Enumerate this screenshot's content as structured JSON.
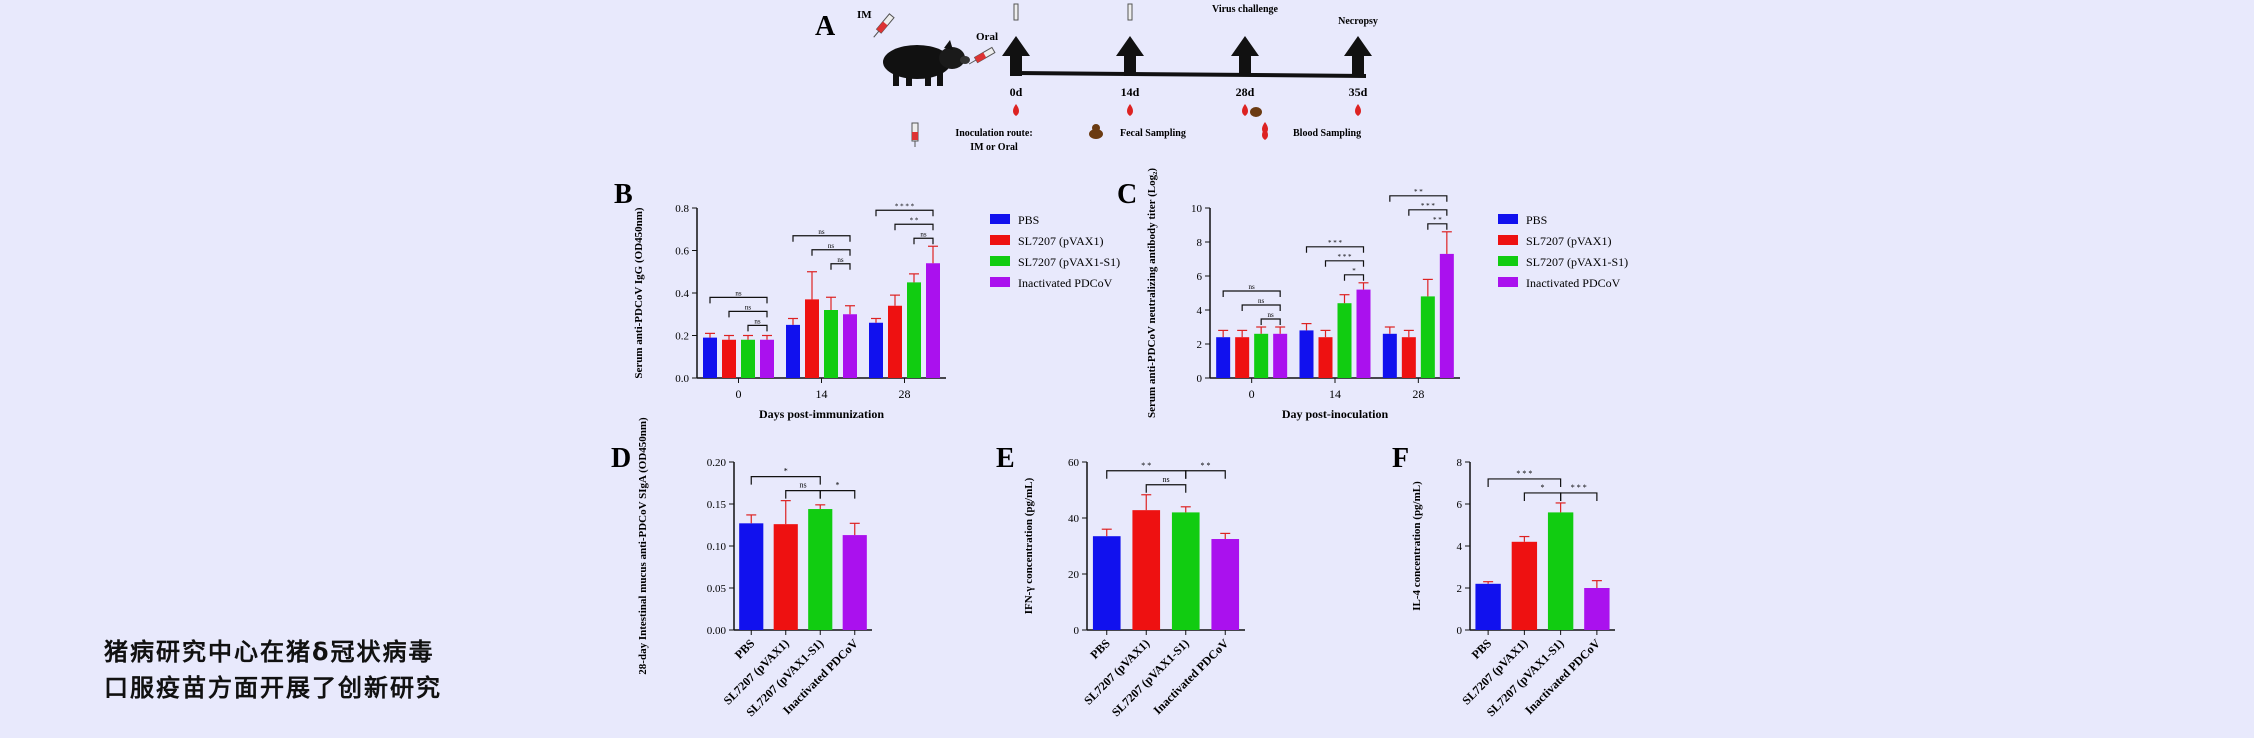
{
  "colors": {
    "blue": "#1111ee",
    "red": "#ee1111",
    "green": "#11cc11",
    "purple": "#aa11ee",
    "error": "#dd2222",
    "axis": "#111111"
  },
  "caption": {
    "line1": "猪病研究中心在猪δ冠状病毒",
    "line2": "口服疫苗方面开展了创新研究"
  },
  "schematic": {
    "panel_label": "A",
    "im_label": "IM",
    "oral_label": "Oral",
    "time_labels": [
      "0d",
      "14d",
      "28d",
      "35d"
    ],
    "top_labels": [
      "Virus challenge",
      "Necropsy"
    ],
    "legend": {
      "inoculation_route": "Inoculation route:",
      "route_detail": "IM or Oral",
      "fecal": "Fecal Sampling",
      "blood": "Blood Sampling"
    }
  },
  "legend_items": [
    "PBS",
    "SL7207 (pVAX1)",
    "SL7207 (pVAX1-S1)",
    "Inactivated PDCoV"
  ],
  "chart_data": [
    {
      "panel": "B",
      "type": "bar",
      "categories": [
        "0",
        "14",
        "28"
      ],
      "xlabel": "Days post-immunization",
      "ylabel": "Serum anti-PDCoV IgG (OD450nm)",
      "ylim": [
        0,
        0.8
      ],
      "yticks": [
        "0.0",
        "0.2",
        "0.4",
        "0.6",
        "0.8"
      ],
      "series": [
        {
          "name": "PBS",
          "values": [
            0.19,
            0.25,
            0.26
          ],
          "err": [
            0.02,
            0.03,
            0.02
          ]
        },
        {
          "name": "SL7207 (pVAX1)",
          "values": [
            0.18,
            0.37,
            0.34
          ],
          "err": [
            0.02,
            0.13,
            0.05
          ]
        },
        {
          "name": "SL7207 (pVAX1-S1)",
          "values": [
            0.18,
            0.32,
            0.45
          ],
          "err": [
            0.02,
            0.06,
            0.04
          ]
        },
        {
          "name": "Inactivated PDCoV",
          "values": [
            0.18,
            0.3,
            0.54
          ],
          "err": [
            0.02,
            0.04,
            0.08
          ]
        }
      ],
      "brackets": [
        {
          "g": 0,
          "a": 0,
          "b": 3,
          "lvl": 2,
          "t": "ns"
        },
        {
          "g": 0,
          "a": 1,
          "b": 3,
          "lvl": 1,
          "t": "ns"
        },
        {
          "g": 0,
          "a": 2,
          "b": 3,
          "lvl": 0,
          "t": "ns"
        },
        {
          "g": 1,
          "a": 0,
          "b": 3,
          "lvl": 2,
          "t": "ns"
        },
        {
          "g": 1,
          "a": 1,
          "b": 3,
          "lvl": 1,
          "t": "ns"
        },
        {
          "g": 1,
          "a": 2,
          "b": 3,
          "lvl": 0,
          "t": "ns"
        },
        {
          "g": 2,
          "a": 0,
          "b": 3,
          "lvl": 2,
          "t": "* * * *"
        },
        {
          "g": 2,
          "a": 1,
          "b": 3,
          "lvl": 1,
          "t": "* *"
        },
        {
          "g": 2,
          "a": 2,
          "b": 3,
          "lvl": 0,
          "t": "ns"
        }
      ]
    },
    {
      "panel": "C",
      "type": "bar",
      "categories": [
        "0",
        "14",
        "28"
      ],
      "xlabel": "Day post-inoculation",
      "ylabel": "Serum anti-PDCoV neutralizing antibody titer (Log₂)",
      "ylim": [
        0,
        10
      ],
      "yticks": [
        "0",
        "2",
        "4",
        "6",
        "8",
        "10"
      ],
      "series": [
        {
          "name": "PBS",
          "values": [
            2.4,
            2.8,
            2.6
          ],
          "err": [
            0.4,
            0.4,
            0.4
          ]
        },
        {
          "name": "SL7207 (pVAX1)",
          "values": [
            2.4,
            2.4,
            2.4
          ],
          "err": [
            0.4,
            0.4,
            0.4
          ]
        },
        {
          "name": "SL7207 (pVAX1-S1)",
          "values": [
            2.6,
            4.4,
            4.8
          ],
          "err": [
            0.4,
            0.5,
            1.0
          ]
        },
        {
          "name": "Inactivated PDCoV",
          "values": [
            2.6,
            5.2,
            7.3
          ],
          "err": [
            0.4,
            0.4,
            1.3
          ]
        }
      ],
      "brackets": [
        {
          "g": 0,
          "a": 0,
          "b": 3,
          "lvl": 2,
          "t": "ns"
        },
        {
          "g": 0,
          "a": 1,
          "b": 3,
          "lvl": 1,
          "t": "ns"
        },
        {
          "g": 0,
          "a": 2,
          "b": 3,
          "lvl": 0,
          "t": "ns"
        },
        {
          "g": 1,
          "a": 0,
          "b": 3,
          "lvl": 2,
          "t": "* * *"
        },
        {
          "g": 1,
          "a": 1,
          "b": 3,
          "lvl": 1,
          "t": "* * *"
        },
        {
          "g": 1,
          "a": 2,
          "b": 3,
          "lvl": 0,
          "t": "*"
        },
        {
          "g": 2,
          "a": 0,
          "b": 3,
          "lvl": 2,
          "t": "* *"
        },
        {
          "g": 2,
          "a": 1,
          "b": 3,
          "lvl": 1,
          "t": "* * *"
        },
        {
          "g": 2,
          "a": 2,
          "b": 3,
          "lvl": 0,
          "t": "* *"
        }
      ]
    },
    {
      "panel": "D",
      "type": "bar",
      "categories": [
        "PBS",
        "SL7207 (pVAX1)",
        "SL7207 (pVAX1-S1)",
        "Inactivated PDCoV"
      ],
      "ylabel": "28-day Intestinal mucus anti-PDCoV SIgA (OD450nm)",
      "ylim": [
        0,
        0.2
      ],
      "yticks": [
        "0.00",
        "0.05",
        "0.10",
        "0.15",
        "0.20"
      ],
      "values": [
        0.127,
        0.126,
        0.144,
        0.113
      ],
      "err": [
        0.01,
        0.028,
        0.005,
        0.014
      ],
      "brackets": [
        {
          "a": 0,
          "b": 2,
          "lvl": 1,
          "t": "*"
        },
        {
          "a": 1,
          "b": 2,
          "lvl": 0,
          "t": "ns"
        },
        {
          "a": 2,
          "b": 3,
          "lvl": 0,
          "t": "*"
        }
      ]
    },
    {
      "panel": "E",
      "type": "bar",
      "categories": [
        "PBS",
        "SL7207 (pVAX1)",
        "SL7207 (pVAX1-S1)",
        "Inactivated PDCoV"
      ],
      "ylabel": "IFN-γ concentration (pg/mL)",
      "ylim": [
        0,
        60
      ],
      "yticks": [
        "0",
        "20",
        "40",
        "60"
      ],
      "values": [
        33.5,
        42.8,
        42,
        32.5
      ],
      "err": [
        2.5,
        5.5,
        2,
        2
      ],
      "brackets": [
        {
          "a": 0,
          "b": 2,
          "lvl": 1,
          "t": "* *"
        },
        {
          "a": 1,
          "b": 2,
          "lvl": 0,
          "t": "ns"
        },
        {
          "a": 2,
          "b": 3,
          "lvl": 1,
          "t": "* *"
        }
      ]
    },
    {
      "panel": "F",
      "type": "bar",
      "categories": [
        "PBS",
        "SL7207 (pVAX1)",
        "SL7207 (pVAX1-S1)",
        "Inactivated PDCoV"
      ],
      "ylabel": "IL-4 concentration (pg/mL)",
      "ylim": [
        0,
        8
      ],
      "yticks": [
        "0",
        "2",
        "4",
        "6",
        "8"
      ],
      "values": [
        2.2,
        4.2,
        5.6,
        2.0
      ],
      "err": [
        0.1,
        0.25,
        0.45,
        0.35
      ],
      "brackets": [
        {
          "a": 0,
          "b": 2,
          "lvl": 1,
          "t": "* * *"
        },
        {
          "a": 1,
          "b": 2,
          "lvl": 0,
          "t": "*"
        },
        {
          "a": 2,
          "b": 3,
          "lvl": 0,
          "t": "* * *"
        }
      ]
    }
  ]
}
